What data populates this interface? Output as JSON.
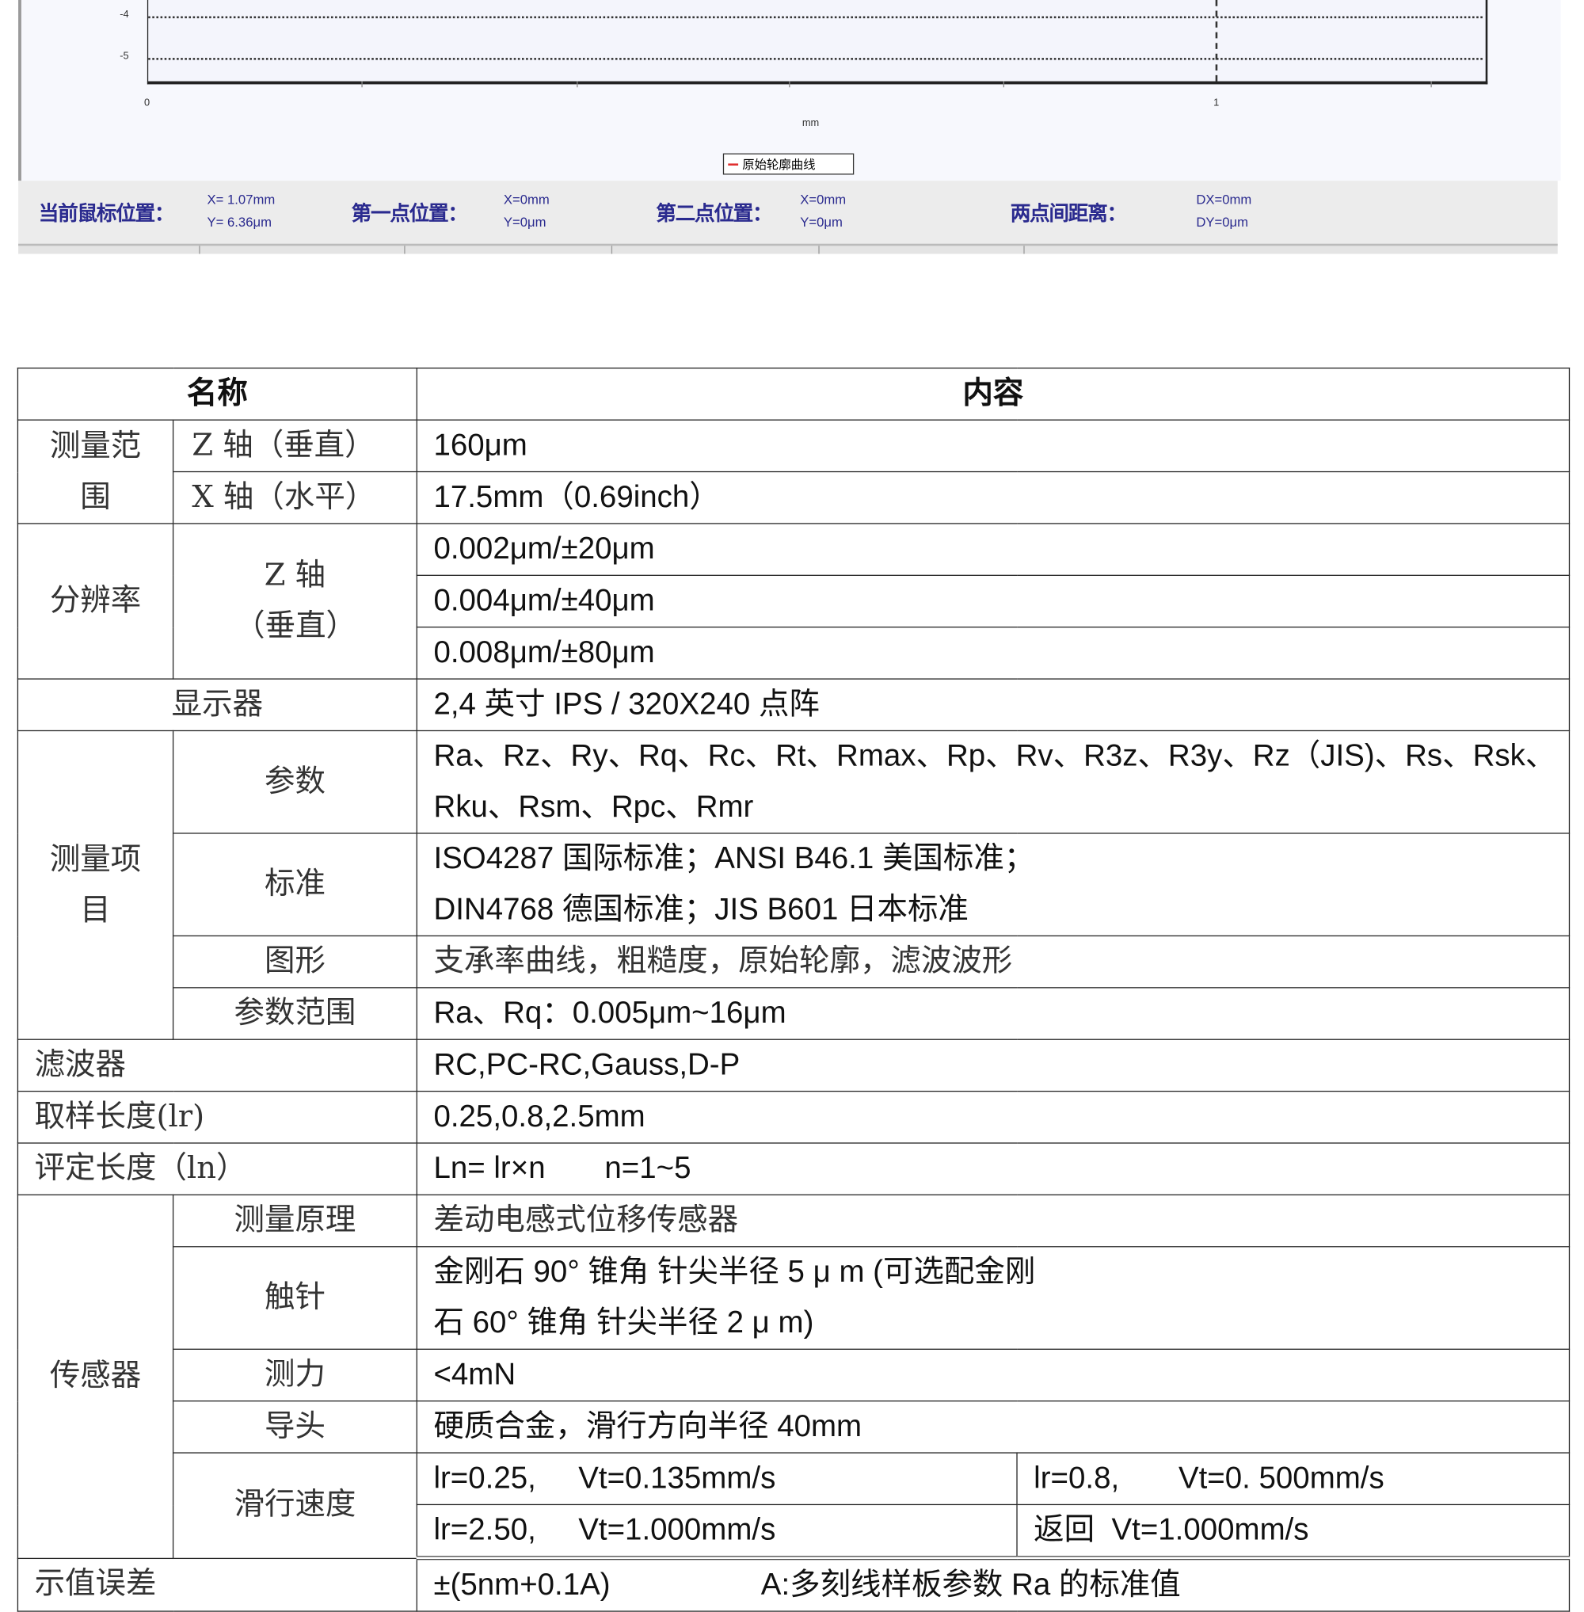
{
  "chart": {
    "y_ticks": [
      "-4",
      "-5"
    ],
    "x_ticks": [
      "0",
      "1"
    ],
    "x_unit": "mm",
    "legend": "原始轮廓曲线",
    "legend_color": "#e03030"
  },
  "status": {
    "cursor_label": "当前鼠标位置：",
    "cursor_x": "X=  1.07mm",
    "cursor_y": "Y=  6.36μm",
    "p1_label": "第一点位置：",
    "p1_x": "X=0mm",
    "p1_y": "Y=0μm",
    "p2_label": "第二点位置：",
    "p2_x": "X=0mm",
    "p2_y": "Y=0μm",
    "dist_label": "两点间距离：",
    "dist_x": "DX=0mm",
    "dist_y": "DY=0μm",
    "text_color": "#2b2b8f"
  },
  "table": {
    "header": [
      "名称",
      "内容"
    ],
    "range": {
      "label": "测量范围",
      "z_label": "Z 轴（垂直）",
      "z_value": "160μm",
      "x_label": "X 轴（水平）",
      "x_value": "17.5mm（0.69inch）"
    },
    "resolution": {
      "label": "分辨率",
      "sub": "Z 轴（垂直）",
      "values": [
        "0.002μm/±20μm",
        "0.004μm/±40μm",
        "0.008μm/±80μm"
      ]
    },
    "display": {
      "label": "显示器",
      "value": "2,4 英寸 IPS / 320X240 点阵"
    },
    "items": {
      "label": "测量项目",
      "params_label": "参数",
      "params_value": "Ra、Rz、Ry、Rq、Rc、Rt、Rmax、Rp、Rv、R3z、R3y、Rz（JIS)、Rs、Rsk、Rku、Rsm、Rpc、Rmr",
      "std_label": "标准",
      "std_value": "ISO4287 国际标准；ANSI B46.1 美国标准；DIN4768 德国标准；JIS B601 日本标准",
      "graph_label": "图形",
      "graph_value": "支承率曲线，粗糙度，原始轮廓，滤波波形",
      "prange_label": "参数范围",
      "prange_value": "Ra、Rq：0.005μm~16μm"
    },
    "filter": {
      "label": "滤波器",
      "value": "RC,PC-RC,Gauss,D-P"
    },
    "sampling": {
      "label": "取样长度(lr)",
      "value": "0.25,0.8,2.5mm"
    },
    "evaluation": {
      "label": "评定长度（ln）",
      "value": "Ln= lr×n       n=1~5"
    },
    "sensor": {
      "label": "传感器",
      "principle_label": "测量原理",
      "principle_value": "差动电感式位移传感器",
      "stylus_label": "触针",
      "stylus_value": "金刚石 90° 锥角  针尖半径 5 μ m (可选配金刚石 60° 锥角  针尖半径 2 μ m)",
      "force_label": "测力",
      "force_value": "<4mN",
      "guide_label": "导头",
      "guide_value": "硬质合金，滑行方向半径 40mm",
      "speed_label": "滑行速度",
      "speed_values": [
        "lr=0.25,     Vt=0.135mm/s",
        "lr=0.8,       Vt=0. 500mm/s",
        "lr=2.50,     Vt=1.000mm/s",
        "返回  Vt=1.000mm/s"
      ]
    },
    "error": {
      "label": "示值误差",
      "value": "±(5nm+0.1A)",
      "note": "A:多刻线样板参数 Ra 的标准值"
    }
  }
}
